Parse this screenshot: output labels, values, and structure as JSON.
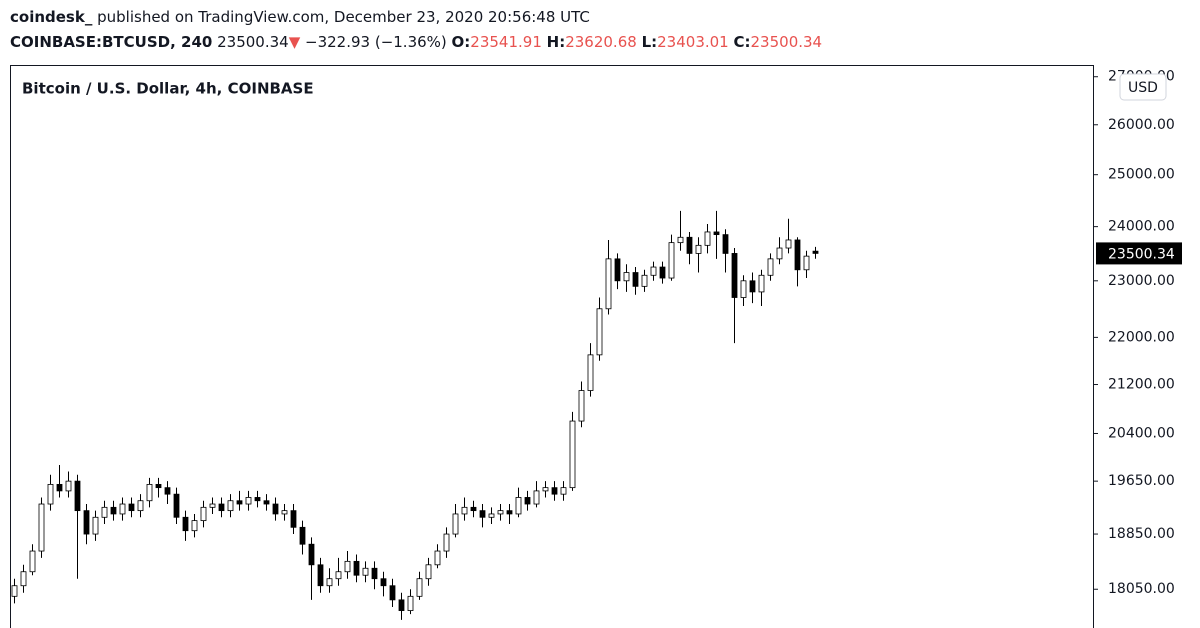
{
  "header": {
    "publisher": "coindesk_",
    "published": "published on TradingView.com, December 23, 2020 20:56:48 UTC",
    "symbol": "COINBASE:BTCUSD, 240",
    "price": "23500.34",
    "arrow": "▼",
    "change": "−322.93 (−1.36%)",
    "o_label": "O:",
    "open": "23541.91",
    "h_label": "H:",
    "high": "23620.68",
    "l_label": "L:",
    "low": "23403.01",
    "c_label": "C:",
    "close": "23500.34"
  },
  "chart_data": {
    "type": "candlestick",
    "title": "Bitcoin / U.S. Dollar, 4h, COINBASE",
    "currency_label": "USD",
    "log_scale": true,
    "color_up": "#ffffff",
    "color_down": "#000000",
    "edge_color": "#000000",
    "last_price": 23500.34,
    "ylim": [
      17550,
      27250
    ],
    "yticks": [
      {
        "value": 27000,
        "label": "27000.00"
      },
      {
        "value": 26000,
        "label": "26000.00"
      },
      {
        "value": 25000,
        "label": "25000.00"
      },
      {
        "value": 24000,
        "label": "24000.00"
      },
      {
        "value": 23000,
        "label": "23000.00"
      },
      {
        "value": 22000,
        "label": "22000.00"
      },
      {
        "value": 21200,
        "label": "21200.00"
      },
      {
        "value": 20400,
        "label": "20400.00"
      },
      {
        "value": 19650,
        "label": "19650.00"
      },
      {
        "value": 18850,
        "label": "18850.00"
      },
      {
        "value": 18050,
        "label": "18050.00"
      }
    ],
    "open": [
      17950,
      18100,
      18300,
      18600,
      19300,
      19600,
      19500,
      19650,
      19200,
      18850,
      19100,
      19250,
      19150,
      19300,
      19200,
      19350,
      19600,
      19550,
      19450,
      19100,
      18900,
      19050,
      19250,
      19300,
      19200,
      19350,
      19300,
      19400,
      19350,
      19300,
      19150,
      19200,
      18950,
      18700,
      18400,
      18100,
      18200,
      18300,
      18450,
      18250,
      18350,
      18200,
      18100,
      17900,
      17750,
      17950,
      18200,
      18400,
      18600,
      18850,
      19150,
      19250,
      19200,
      19100,
      19150,
      19200,
      19150,
      19400,
      19300,
      19500,
      19550,
      19450,
      19550,
      20600,
      21100,
      21700,
      22500,
      23400,
      23000,
      23150,
      22900,
      23100,
      23250,
      23050,
      23700,
      23800,
      23500,
      23650,
      23900,
      23850,
      23500,
      22700,
      23000,
      22800,
      23100,
      23400,
      23600,
      23750,
      23200,
      23541.91
    ],
    "high": [
      18200,
      18400,
      18700,
      19400,
      19750,
      19900,
      19800,
      19750,
      19300,
      19200,
      19350,
      19350,
      19400,
      19400,
      19450,
      19700,
      19700,
      19650,
      19550,
      19200,
      19150,
      19350,
      19400,
      19400,
      19450,
      19500,
      19500,
      19500,
      19450,
      19400,
      19300,
      19300,
      19050,
      18800,
      18500,
      18350,
      18500,
      18600,
      18550,
      18450,
      18450,
      18300,
      18200,
      18000,
      18050,
      18300,
      18500,
      18700,
      18950,
      19300,
      19400,
      19350,
      19300,
      19250,
      19300,
      19300,
      19550,
      19500,
      19650,
      19650,
      19650,
      19650,
      20750,
      21250,
      21900,
      22700,
      23750,
      23500,
      23300,
      23250,
      23200,
      23350,
      23350,
      23850,
      24300,
      23900,
      23800,
      24050,
      24300,
      23950,
      23600,
      23100,
      23150,
      23200,
      23500,
      23800,
      24150,
      23800,
      23550,
      23620.68
    ],
    "low": [
      17850,
      18000,
      18250,
      18500,
      19200,
      19400,
      19400,
      18200,
      18700,
      18750,
      19000,
      19050,
      19050,
      19100,
      19100,
      19250,
      19400,
      19300,
      19000,
      18750,
      18800,
      18950,
      19150,
      19100,
      19100,
      19200,
      19200,
      19250,
      19200,
      19050,
      19050,
      18850,
      18550,
      17900,
      18000,
      18000,
      18100,
      18200,
      18150,
      18150,
      18050,
      17950,
      17800,
      17620,
      17700,
      17900,
      18100,
      18350,
      18500,
      18800,
      19050,
      19100,
      18950,
      19000,
      19050,
      19000,
      19100,
      19200,
      19250,
      19400,
      19350,
      19350,
      19500,
      20500,
      21000,
      21600,
      22400,
      22850,
      22800,
      22750,
      22800,
      23000,
      22950,
      23000,
      23550,
      23300,
      23150,
      23500,
      23400,
      23150,
      21900,
      22550,
      22600,
      22550,
      23000,
      23300,
      23500,
      22900,
      23050,
      23403.01
    ],
    "close": [
      18100,
      18300,
      18600,
      19300,
      19600,
      19500,
      19650,
      19200,
      18850,
      19100,
      19250,
      19150,
      19300,
      19200,
      19350,
      19600,
      19550,
      19450,
      19100,
      18900,
      19050,
      19250,
      19300,
      19200,
      19350,
      19300,
      19400,
      19350,
      19300,
      19150,
      19200,
      18950,
      18700,
      18400,
      18100,
      18200,
      18300,
      18450,
      18250,
      18350,
      18200,
      18100,
      17900,
      17750,
      17950,
      18200,
      18400,
      18600,
      18850,
      19150,
      19250,
      19200,
      19100,
      19150,
      19200,
      19150,
      19400,
      19300,
      19500,
      19550,
      19450,
      19550,
      20600,
      21100,
      21700,
      22500,
      23400,
      23000,
      23150,
      22900,
      23100,
      23250,
      23050,
      23700,
      23800,
      23500,
      23650,
      23900,
      23850,
      23500,
      22700,
      23000,
      22800,
      23100,
      23400,
      23600,
      23750,
      23200,
      23450,
      23500.34
    ]
  }
}
